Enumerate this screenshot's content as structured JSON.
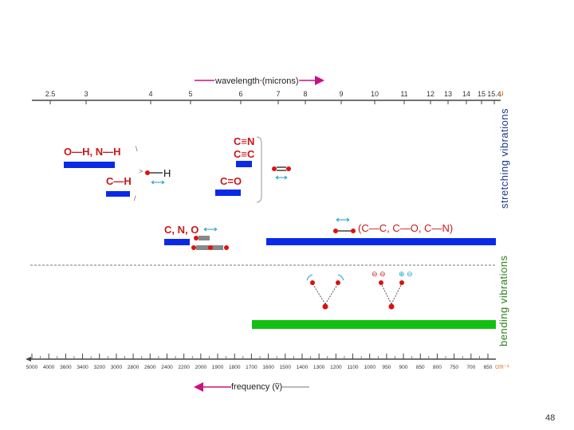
{
  "wavelength_title": "wavelength (microns)",
  "frequency_title": "frequency (ṽ)",
  "wavelength_unit": "μ",
  "frequency_unit": "cm⁻¹",
  "wavelength_ticks": [
    "2.5",
    "3",
    "4",
    "5",
    "6",
    "7",
    "8",
    "9",
    "10",
    "11",
    "12",
    "13",
    "14",
    "15",
    "15.4"
  ],
  "frequency_ticks": [
    "5000",
    "4000",
    "3600",
    "3400",
    "3200",
    "3000",
    "2800",
    "2600",
    "2400",
    "2200",
    "2000",
    "1900",
    "1800",
    "1700",
    "1600",
    "1500",
    "1400",
    "1300",
    "1200",
    "1100",
    "1000",
    "950",
    "900",
    "850",
    "800",
    "750",
    "700",
    "650"
  ],
  "labels": {
    "oh_nh": "O—H, N—H",
    "ch": "C—H",
    "cn_triple": "C≡N",
    "cc_triple": "C≡C",
    "co_double": "C=O",
    "cno": "C, N, O",
    "single_bonds": "(C—C, C—O, C—N)",
    "h_atom": "H",
    "stretching": "stretching vibrations",
    "bending": "bending vibrations",
    "page_number": "48"
  },
  "colors": {
    "stretch_bar": "#0a2ae8",
    "bend_bar": "#12c012",
    "label_red": "#c81818",
    "arrow_magenta": "#cc1080",
    "atom_red": "#dd1010",
    "arrow_cyan": "#18a0c8",
    "side_label": "#1a3a8a",
    "side_label_bend": "#2e7d1e",
    "unit_orange": "#d86a18"
  },
  "icons": [
    "bidirectional-arrow-icon",
    "red-atom-icon"
  ]
}
